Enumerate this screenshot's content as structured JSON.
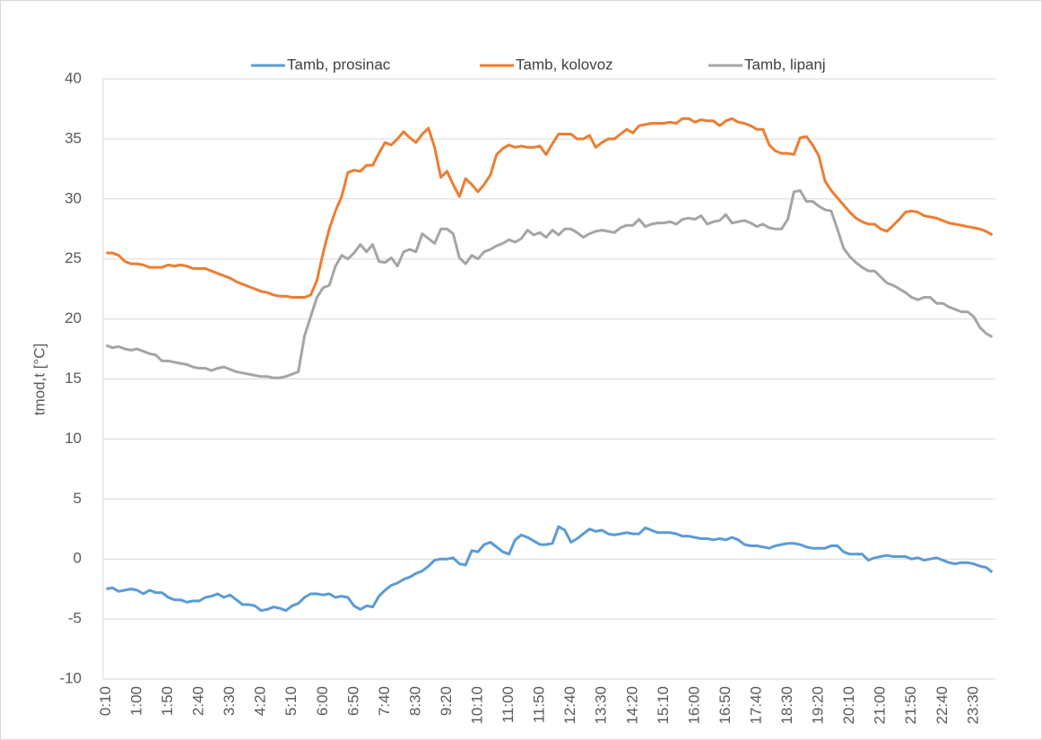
{
  "chart_data": {
    "type": "line",
    "y_label": "tmod,t [°C]",
    "ylim": [
      -10,
      40
    ],
    "yticks": [
      -10,
      -5,
      0,
      5,
      10,
      15,
      20,
      25,
      30,
      35,
      40
    ],
    "grid": true,
    "legend": "top",
    "categories": [
      "0:10",
      null,
      null,
      null,
      null,
      "1:00",
      null,
      null,
      null,
      null,
      "1:50",
      null,
      null,
      null,
      null,
      "2:40",
      null,
      null,
      null,
      null,
      "3:30",
      null,
      null,
      null,
      null,
      "4:20",
      null,
      null,
      null,
      null,
      "5:10",
      null,
      null,
      null,
      null,
      "6:00",
      null,
      null,
      null,
      null,
      "6:50",
      null,
      null,
      null,
      null,
      "7:40",
      null,
      null,
      null,
      null,
      "8:30",
      null,
      null,
      null,
      null,
      "9:20",
      null,
      null,
      null,
      null,
      "10:10",
      null,
      null,
      null,
      null,
      "11:00",
      null,
      null,
      null,
      null,
      "11:50",
      null,
      null,
      null,
      null,
      "12:40",
      null,
      null,
      null,
      null,
      "13:30",
      null,
      null,
      null,
      null,
      "14:20",
      null,
      null,
      null,
      null,
      "15:10",
      null,
      null,
      null,
      null,
      "16:00",
      null,
      null,
      null,
      null,
      "16:50",
      null,
      null,
      null,
      null,
      "17:40",
      null,
      null,
      null,
      null,
      "18:30",
      null,
      null,
      null,
      null,
      "19:20",
      null,
      null,
      null,
      null,
      "20:10",
      null,
      null,
      null,
      null,
      "21:00",
      null,
      null,
      null,
      null,
      "21:50",
      null,
      null,
      null,
      null,
      "22:40",
      null,
      null,
      null,
      null,
      "23:30",
      null,
      null,
      null
    ],
    "series": [
      {
        "name": "Tamb, prosinac",
        "color": "#5b9bd5",
        "values": [
          -2.5,
          -2.4,
          -2.7,
          -2.6,
          -2.5,
          -2.6,
          -2.9,
          -2.6,
          -2.8,
          -2.8,
          -3.2,
          -3.4,
          -3.4,
          -3.6,
          -3.5,
          -3.5,
          -3.2,
          -3.1,
          -2.9,
          -3.2,
          -3.0,
          -3.4,
          -3.8,
          -3.8,
          -3.9,
          -4.3,
          -4.2,
          -4.0,
          -4.1,
          -4.3,
          -3.9,
          -3.7,
          -3.2,
          -2.9,
          -2.9,
          -3.0,
          -2.9,
          -3.2,
          -3.1,
          -3.2,
          -3.9,
          -4.2,
          -3.9,
          -4.0,
          -3.1,
          -2.6,
          -2.2,
          -2.0,
          -1.7,
          -1.5,
          -1.2,
          -1.0,
          -0.6,
          -0.1,
          0.0,
          0.0,
          0.1,
          -0.4,
          -0.5,
          0.7,
          0.6,
          1.2,
          1.4,
          1.0,
          0.6,
          0.4,
          1.6,
          2.0,
          1.8,
          1.5,
          1.2,
          1.2,
          1.3,
          2.7,
          2.4,
          1.4,
          1.7,
          2.1,
          2.5,
          2.3,
          2.4,
          2.1,
          2.0,
          2.1,
          2.2,
          2.1,
          2.1,
          2.6,
          2.4,
          2.2,
          2.2,
          2.2,
          2.1,
          1.9,
          1.9,
          1.8,
          1.7,
          1.7,
          1.6,
          1.7,
          1.6,
          1.8,
          1.6,
          1.2,
          1.1,
          1.1,
          1.0,
          0.9,
          1.1,
          1.2,
          1.3,
          1.3,
          1.2,
          1.0,
          0.9,
          0.9,
          0.9,
          1.1,
          1.1,
          0.6,
          0.4,
          0.4,
          0.4,
          -0.1,
          0.1,
          0.2,
          0.3,
          0.2,
          0.2,
          0.2,
          0.0,
          0.1,
          -0.1,
          0.0,
          0.1,
          -0.1,
          -0.3,
          -0.4,
          -0.3,
          -0.3,
          -0.4,
          -0.6,
          -0.7,
          -1.1
        ]
      },
      {
        "name": "Tamb, kolovoz",
        "color": "#ed7d31",
        "values": [
          25.5,
          25.5,
          25.3,
          24.8,
          24.6,
          24.6,
          24.5,
          24.3,
          24.3,
          24.3,
          24.5,
          24.4,
          24.5,
          24.4,
          24.2,
          24.2,
          24.2,
          24.0,
          23.8,
          23.6,
          23.4,
          23.1,
          22.9,
          22.7,
          22.5,
          22.3,
          22.2,
          22.0,
          21.9,
          21.9,
          21.8,
          21.8,
          21.8,
          22.0,
          23.2,
          25.5,
          27.5,
          29.0,
          30.2,
          32.2,
          32.4,
          32.3,
          32.8,
          32.8,
          33.8,
          34.7,
          34.5,
          35.0,
          35.6,
          35.1,
          34.7,
          35.4,
          35.9,
          34.3,
          31.8,
          32.3,
          31.2,
          30.2,
          31.7,
          31.2,
          30.6,
          31.2,
          32.0,
          33.7,
          34.2,
          34.5,
          34.3,
          34.4,
          34.3,
          34.3,
          34.4,
          33.7,
          34.6,
          35.4,
          35.4,
          35.4,
          35.0,
          35.0,
          35.3,
          34.3,
          34.7,
          35.0,
          35.0,
          35.4,
          35.8,
          35.5,
          36.1,
          36.2,
          36.3,
          36.3,
          36.3,
          36.4,
          36.3,
          36.7,
          36.7,
          36.4,
          36.6,
          36.5,
          36.5,
          36.1,
          36.5,
          36.7,
          36.4,
          36.3,
          36.1,
          35.8,
          35.8,
          34.5,
          34.0,
          33.8,
          33.8,
          33.7,
          35.1,
          35.2,
          34.5,
          33.6,
          31.5,
          30.7,
          30.1,
          29.5,
          28.9,
          28.4,
          28.1,
          27.9,
          27.9,
          27.5,
          27.3,
          27.8,
          28.3,
          28.9,
          29.0,
          28.9,
          28.6,
          28.5,
          28.4,
          28.2,
          28.0,
          27.9,
          27.8,
          27.7,
          27.6,
          27.5,
          27.3,
          27.0
        ]
      },
      {
        "name": "Tamb, lipanj",
        "color": "#a5a5a5",
        "values": [
          17.8,
          17.6,
          17.7,
          17.5,
          17.4,
          17.5,
          17.3,
          17.1,
          17.0,
          16.5,
          16.5,
          16.4,
          16.3,
          16.2,
          16.0,
          15.9,
          15.9,
          15.7,
          15.9,
          16.0,
          15.8,
          15.6,
          15.5,
          15.4,
          15.3,
          15.2,
          15.2,
          15.1,
          15.1,
          15.2,
          15.4,
          15.6,
          18.6,
          20.2,
          21.8,
          22.6,
          22.8,
          24.4,
          25.3,
          25.0,
          25.5,
          26.2,
          25.6,
          26.2,
          24.8,
          24.7,
          25.1,
          24.4,
          25.6,
          25.8,
          25.6,
          27.1,
          26.7,
          26.3,
          27.5,
          27.5,
          27.1,
          25.1,
          24.6,
          25.3,
          25.0,
          25.6,
          25.8,
          26.1,
          26.3,
          26.6,
          26.4,
          26.7,
          27.4,
          27.0,
          27.2,
          26.8,
          27.4,
          27.0,
          27.5,
          27.5,
          27.2,
          26.8,
          27.1,
          27.3,
          27.4,
          27.3,
          27.2,
          27.6,
          27.8,
          27.8,
          28.3,
          27.7,
          27.9,
          28.0,
          28.0,
          28.1,
          27.9,
          28.3,
          28.4,
          28.3,
          28.6,
          27.9,
          28.1,
          28.2,
          28.7,
          28.0,
          28.1,
          28.2,
          28.0,
          27.7,
          27.9,
          27.6,
          27.5,
          27.5,
          28.3,
          30.6,
          30.7,
          29.8,
          29.8,
          29.4,
          29.1,
          29.0,
          27.5,
          25.9,
          25.2,
          24.7,
          24.3,
          24.0,
          24.0,
          23.5,
          23.0,
          22.8,
          22.5,
          22.2,
          21.8,
          21.6,
          21.8,
          21.8,
          21.3,
          21.3,
          21.0,
          20.8,
          20.6,
          20.6,
          20.2,
          19.3,
          18.8,
          18.5
        ]
      }
    ]
  }
}
